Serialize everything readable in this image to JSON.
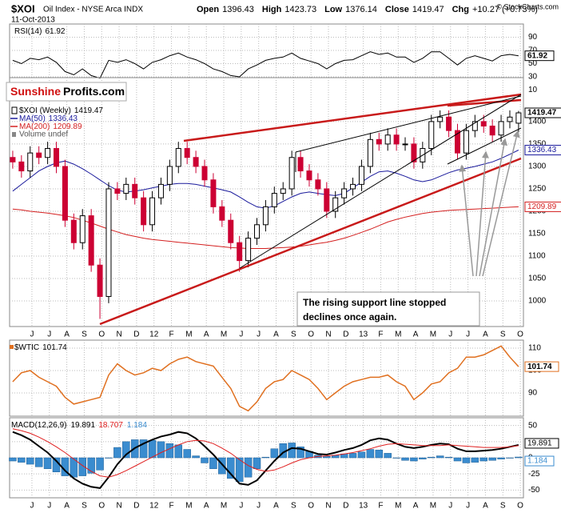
{
  "header": {
    "title": "$XOI",
    "subtitle": "Oil Index - NYSE Arca INDX",
    "date": "11-Oct-2013",
    "stats": [
      {
        "label": "Open",
        "value": 1396.43
      },
      {
        "label": "High",
        "value": 1423.73
      },
      {
        "label": "Low",
        "value": 1376.14
      },
      {
        "label": "Close",
        "value": 1419.47
      },
      {
        "label": "Chg",
        "value": "+10.27 (+0.73%)"
      }
    ],
    "copyright": "© StockCharts.com"
  },
  "logo": {
    "first": "Sunshine",
    "second": "Profits.com"
  },
  "chart_data": [
    {
      "type": "line",
      "title": "RSI(14)",
      "color": "#000000",
      "x": [
        -1.1,
        -0.6,
        -0.1,
        0.4,
        0.9,
        1.4,
        1.9,
        2.4,
        2.9,
        3.4,
        3.9,
        4.4,
        4.9,
        5.4,
        5.9,
        6.4,
        6.9,
        7.4,
        7.9,
        8.4,
        8.9,
        9.4,
        9.9,
        10.4,
        10.9,
        11.4,
        11.9,
        12.4,
        12.9,
        13.4,
        13.9,
        14.4,
        14.9,
        15.4,
        15.9,
        16.4,
        16.9,
        17.4,
        17.9,
        18.4,
        18.9,
        19.4,
        19.9,
        20.4,
        20.9,
        21.4,
        21.9,
        22.4,
        22.9,
        23.4,
        23.9,
        24.4,
        24.9,
        25.4,
        25.9,
        26.4,
        26.9,
        27.4,
        27.9
      ],
      "values": [
        55,
        50,
        58,
        56,
        60,
        52,
        38,
        33,
        42,
        32,
        28,
        55,
        52,
        56,
        50,
        42,
        52,
        56,
        62,
        66,
        60,
        56,
        50,
        42,
        38,
        32,
        30,
        42,
        48,
        55,
        58,
        60,
        66,
        58,
        54,
        50,
        42,
        50,
        55,
        56,
        62,
        68,
        64,
        66,
        60,
        60,
        52,
        58,
        68,
        68,
        58,
        48,
        58,
        62,
        58,
        54,
        62,
        64,
        61.92
      ],
      "xlim": [
        -1.28,
        28.18
      ],
      "ylim": [
        28.8,
        110
      ],
      "yticks": [
        90,
        70,
        50,
        30,
        10
      ],
      "grid": true
    },
    {
      "type": "candlestick",
      "name": "$XOI (Weekly)",
      "up_color": "#000000",
      "down_color": "#cc0033",
      "x": [
        -1.1,
        -0.6,
        -0.1,
        0.4,
        0.9,
        1.4,
        1.9,
        2.4,
        2.9,
        3.4,
        3.9,
        4.4,
        4.9,
        5.4,
        5.9,
        6.4,
        6.9,
        7.4,
        7.9,
        8.4,
        8.9,
        9.4,
        9.9,
        10.4,
        10.9,
        11.4,
        11.9,
        12.4,
        12.9,
        13.4,
        13.9,
        14.4,
        14.9,
        15.4,
        15.9,
        16.4,
        16.9,
        17.4,
        17.9,
        18.4,
        18.9,
        19.4,
        19.9,
        20.4,
        20.9,
        21.4,
        21.9,
        22.4,
        22.9,
        23.4,
        23.9,
        24.4,
        24.9,
        25.4,
        25.9,
        26.4,
        26.9,
        27.4,
        27.9
      ],
      "open": [
        1320,
        1310,
        1290,
        1330,
        1320,
        1340,
        1300,
        1180,
        1130,
        1190,
        1080,
        1010,
        1250,
        1240,
        1260,
        1230,
        1170,
        1230,
        1260,
        1300,
        1340,
        1320,
        1300,
        1270,
        1210,
        1180,
        1130,
        1090,
        1140,
        1170,
        1210,
        1240,
        1250,
        1320,
        1290,
        1270,
        1250,
        1200,
        1230,
        1250,
        1260,
        1300,
        1360,
        1350,
        1370,
        1350,
        1350,
        1310,
        1340,
        1400,
        1410,
        1380,
        1330,
        1380,
        1400,
        1390,
        1370,
        1400,
        1396.43
      ],
      "high": [
        1335,
        1325,
        1345,
        1345,
        1355,
        1355,
        1315,
        1195,
        1205,
        1205,
        1095,
        1265,
        1265,
        1275,
        1275,
        1245,
        1245,
        1275,
        1315,
        1355,
        1355,
        1335,
        1315,
        1285,
        1225,
        1195,
        1145,
        1155,
        1185,
        1225,
        1255,
        1265,
        1335,
        1335,
        1305,
        1285,
        1265,
        1245,
        1265,
        1275,
        1315,
        1375,
        1375,
        1385,
        1385,
        1365,
        1365,
        1355,
        1415,
        1425,
        1425,
        1395,
        1395,
        1415,
        1415,
        1405,
        1415,
        1425,
        1423.73
      ],
      "low": [
        1295,
        1275,
        1275,
        1305,
        1305,
        1285,
        1165,
        1115,
        1115,
        1065,
        960,
        995,
        1225,
        1225,
        1215,
        1155,
        1155,
        1215,
        1245,
        1285,
        1305,
        1285,
        1255,
        1195,
        1165,
        1115,
        1065,
        1075,
        1125,
        1155,
        1195,
        1225,
        1235,
        1275,
        1255,
        1235,
        1185,
        1185,
        1215,
        1235,
        1245,
        1285,
        1335,
        1335,
        1335,
        1335,
        1295,
        1295,
        1325,
        1385,
        1365,
        1315,
        1315,
        1365,
        1375,
        1355,
        1355,
        1385,
        1376.14
      ],
      "close": [
        1310,
        1290,
        1330,
        1320,
        1340,
        1300,
        1180,
        1130,
        1190,
        1080,
        1010,
        1250,
        1240,
        1260,
        1230,
        1170,
        1230,
        1260,
        1300,
        1340,
        1320,
        1300,
        1270,
        1210,
        1180,
        1130,
        1090,
        1140,
        1170,
        1210,
        1240,
        1250,
        1320,
        1290,
        1270,
        1250,
        1200,
        1230,
        1250,
        1260,
        1300,
        1360,
        1350,
        1370,
        1350,
        1350,
        1310,
        1340,
        1400,
        1410,
        1380,
        1330,
        1380,
        1400,
        1390,
        1370,
        1400,
        1410,
        1419.47
      ],
      "series": [
        {
          "name": "MA(50)",
          "color": "#1a1a9c",
          "values": [
            1245,
            1260,
            1275,
            1290,
            1300,
            1308,
            1312,
            1305,
            1295,
            1283,
            1270,
            1257,
            1247,
            1243,
            1245,
            1248,
            1252,
            1256,
            1260,
            1262,
            1262,
            1260,
            1256,
            1252,
            1248,
            1243,
            1232,
            1220,
            1210,
            1207,
            1212,
            1222,
            1232,
            1240,
            1243,
            1240,
            1237,
            1235,
            1240,
            1252,
            1265,
            1278,
            1288,
            1290,
            1285,
            1278,
            1270,
            1266,
            1270,
            1278,
            1286,
            1292,
            1296,
            1300,
            1305,
            1310,
            1318,
            1327,
            1336.43
          ]
        },
        {
          "name": "MA(200)",
          "color": "#d42020",
          "values": [
            1205,
            1203,
            1200,
            1198,
            1196,
            1193,
            1190,
            1186,
            1180,
            1174,
            1167,
            1160,
            1154,
            1148,
            1144,
            1140,
            1137,
            1135,
            1133,
            1131,
            1129,
            1127,
            1125,
            1123,
            1121,
            1119,
            1118,
            1117,
            1117,
            1117,
            1118,
            1119,
            1120,
            1122,
            1125,
            1128,
            1131,
            1135,
            1140,
            1146,
            1153,
            1160,
            1168,
            1176,
            1182,
            1187,
            1191,
            1195,
            1198,
            1200,
            1202,
            1203,
            1204,
            1205,
            1206,
            1207,
            1208,
            1209,
            1209.89
          ]
        }
      ],
      "note": "Volume undef",
      "annotation": [
        "The rising support line stopped",
        "declines once again."
      ],
      "xlim": [
        -1.28,
        28.18
      ],
      "ylim": [
        943,
        1498
      ],
      "yticks": [
        1000,
        1050,
        1100,
        1150,
        1200,
        1250,
        1300,
        1350,
        1400
      ],
      "xticks": [
        {
          "value": 0,
          "label": "J"
        },
        {
          "value": 1,
          "label": "J"
        },
        {
          "value": 2,
          "label": "A"
        },
        {
          "value": 3,
          "label": "S"
        },
        {
          "value": 4,
          "label": "O"
        },
        {
          "value": 5,
          "label": "N"
        },
        {
          "value": 6,
          "label": "D"
        },
        {
          "value": 7,
          "label": "12"
        },
        {
          "value": 8,
          "label": "F"
        },
        {
          "value": 9,
          "label": "M"
        },
        {
          "value": 10,
          "label": "A"
        },
        {
          "value": 11,
          "label": "M"
        },
        {
          "value": 12,
          "label": "J"
        },
        {
          "value": 13,
          "label": "J"
        },
        {
          "value": 14,
          "label": "A"
        },
        {
          "value": 15,
          "label": "S"
        },
        {
          "value": 16,
          "label": "O"
        },
        {
          "value": 17,
          "label": "N"
        },
        {
          "value": 18,
          "label": "D"
        },
        {
          "value": 19,
          "label": "13"
        },
        {
          "value": 20,
          "label": "F"
        },
        {
          "value": 21,
          "label": "M"
        },
        {
          "value": 22,
          "label": "A"
        },
        {
          "value": 23,
          "label": "M"
        },
        {
          "value": 24,
          "label": "J"
        },
        {
          "value": 25,
          "label": "J"
        },
        {
          "value": 26,
          "label": "A"
        },
        {
          "value": 27,
          "label": "S"
        },
        {
          "value": 28,
          "label": "O"
        }
      ],
      "grid": true
    },
    {
      "type": "line",
      "title": "$WTIC",
      "color": "#e07020",
      "x": [
        -1.1,
        -0.6,
        -0.1,
        0.4,
        0.9,
        1.4,
        1.9,
        2.4,
        2.9,
        3.4,
        3.9,
        4.4,
        4.9,
        5.4,
        5.9,
        6.4,
        6.9,
        7.4,
        7.9,
        8.4,
        8.9,
        9.4,
        9.9,
        10.4,
        10.9,
        11.4,
        11.9,
        12.4,
        12.9,
        13.4,
        13.9,
        14.4,
        14.9,
        15.4,
        15.9,
        16.4,
        16.9,
        17.4,
        17.9,
        18.4,
        18.9,
        19.4,
        19.9,
        20.4,
        20.9,
        21.4,
        21.9,
        22.4,
        22.9,
        23.4,
        23.9,
        24.4,
        24.9,
        25.4,
        25.9,
        26.4,
        26.9,
        27.4,
        27.9
      ],
      "values": [
        95,
        99,
        100,
        97,
        95,
        93,
        88,
        85,
        86,
        87,
        88,
        98,
        103,
        100,
        98,
        99,
        101,
        100,
        103,
        105,
        106,
        104,
        103,
        102,
        97,
        92,
        84,
        82,
        86,
        92,
        95,
        96,
        100,
        98,
        96,
        92,
        87,
        90,
        93,
        95,
        96,
        97,
        97,
        98,
        95,
        93,
        87,
        90,
        94,
        95,
        99,
        101,
        106,
        106,
        107,
        109,
        111,
        106,
        101.74
      ],
      "xlim": [
        -1.28,
        28.18
      ],
      "ylim": [
        79.6,
        113.6
      ],
      "yticks": [
        110,
        100,
        90
      ],
      "grid": true
    },
    {
      "type": "macd",
      "title": "MACD(12,26,9)",
      "x": [
        -1.1,
        -0.6,
        -0.1,
        0.4,
        0.9,
        1.4,
        1.9,
        2.4,
        2.9,
        3.4,
        3.9,
        4.4,
        4.9,
        5.4,
        5.9,
        6.4,
        6.9,
        7.4,
        7.9,
        8.4,
        8.9,
        9.4,
        9.9,
        10.4,
        10.9,
        11.4,
        11.9,
        12.4,
        12.9,
        13.4,
        13.9,
        14.4,
        14.9,
        15.4,
        15.9,
        16.4,
        16.9,
        17.4,
        17.9,
        18.4,
        18.9,
        19.4,
        19.9,
        20.4,
        20.9,
        21.4,
        21.9,
        22.4,
        22.9,
        23.4,
        23.9,
        24.4,
        24.9,
        25.4,
        25.9,
        26.4,
        26.9,
        27.4,
        27.9
      ],
      "series": [
        {
          "color": "#000000",
          "kind": "line",
          "values": [
            40,
            35,
            28,
            18,
            8,
            -5,
            -20,
            -32,
            -40,
            -45,
            -47,
            -30,
            -10,
            5,
            15,
            22,
            28,
            33,
            36,
            40,
            38,
            30,
            18,
            5,
            -10,
            -25,
            -40,
            -42,
            -35,
            -20,
            -5,
            8,
            15,
            14,
            10,
            6,
            5,
            8,
            12,
            15,
            20,
            27,
            30,
            28,
            22,
            17,
            15,
            17,
            20,
            22,
            21,
            14,
            10,
            10,
            11,
            12,
            14,
            17,
            19.891
          ]
        },
        {
          "color": "#e02020",
          "kind": "line",
          "values": [
            45,
            42,
            38,
            32,
            25,
            17,
            8,
            -2,
            -12,
            -21,
            -28,
            -30,
            -26,
            -20,
            -13,
            -6,
            1,
            8,
            14,
            20,
            25,
            27,
            26,
            22,
            15,
            7,
            -3,
            -12,
            -18,
            -21,
            -19,
            -14,
            -8,
            -3,
            0,
            2,
            3,
            4,
            6,
            8,
            11,
            14,
            18,
            21,
            22,
            21,
            20,
            19,
            19,
            19,
            20,
            19,
            18,
            17,
            16,
            16,
            16,
            17,
            18.707
          ]
        },
        {
          "color": "#3a8ccf",
          "kind": "histogram",
          "values": [
            -5,
            -7,
            -10,
            -14,
            -17,
            -22,
            -28,
            -30,
            -28,
            -24,
            -19,
            0,
            16,
            25,
            28,
            28,
            27,
            25,
            22,
            20,
            13,
            3,
            -8,
            -17,
            -25,
            -32,
            -37,
            -30,
            -17,
            1,
            14,
            22,
            23,
            17,
            10,
            4,
            2,
            4,
            6,
            7,
            9,
            13,
            12,
            7,
            0,
            -4,
            -5,
            -2,
            1,
            3,
            1,
            -5,
            -8,
            -7,
            -5,
            -4,
            -2,
            0,
            1.184
          ]
        }
      ],
      "xlim": [
        -1.28,
        28.18
      ],
      "ylim": [
        -62,
        62
      ],
      "yticks": [
        50,
        25,
        0,
        -25,
        -50
      ],
      "xticks": [
        {
          "value": 0,
          "label": "J"
        },
        {
          "value": 1,
          "label": "J"
        },
        {
          "value": 2,
          "label": "A"
        },
        {
          "value": 3,
          "label": "S"
        },
        {
          "value": 4,
          "label": "O"
        },
        {
          "value": 5,
          "label": "N"
        },
        {
          "value": 6,
          "label": "D"
        },
        {
          "value": 7,
          "label": "12"
        },
        {
          "value": 8,
          "label": "F"
        },
        {
          "value": 9,
          "label": "M"
        },
        {
          "value": 10,
          "label": "A"
        },
        {
          "value": 11,
          "label": "M"
        },
        {
          "value": 12,
          "label": "J"
        },
        {
          "value": 13,
          "label": "J"
        },
        {
          "value": 14,
          "label": "A"
        },
        {
          "value": 15,
          "label": "S"
        },
        {
          "value": 16,
          "label": "O"
        },
        {
          "value": 17,
          "label": "N"
        },
        {
          "value": 18,
          "label": "D"
        },
        {
          "value": 19,
          "label": "13"
        },
        {
          "value": 20,
          "label": "F"
        },
        {
          "value": 21,
          "label": "M"
        },
        {
          "value": 22,
          "label": "A"
        },
        {
          "value": 23,
          "label": "M"
        },
        {
          "value": 24,
          "label": "J"
        },
        {
          "value": 25,
          "label": "J"
        },
        {
          "value": 26,
          "label": "A"
        },
        {
          "value": 27,
          "label": "S"
        },
        {
          "value": 28,
          "label": "O"
        }
      ],
      "grid": true
    }
  ]
}
